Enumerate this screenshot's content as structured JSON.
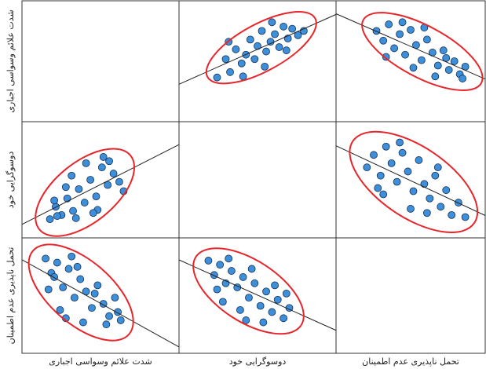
{
  "chart_data": {
    "type": "scatter-matrix",
    "variables": [
      "شدت علائم وسواسی اجباری",
      "دوسوگرایی خود",
      "تحمل ناپذیری عدم اطمینان"
    ],
    "xlim": [
      0,
      10
    ],
    "ylim": [
      0,
      10
    ],
    "point_color": "#3d8fd9",
    "ellipse_color": "#e8252a",
    "cells": [
      [
        null,
        {
          "x": [
            2.2,
            2.8,
            3.1,
            3.5,
            3.9,
            4.2,
            4.5,
            4.8,
            5.0,
            5.3,
            5.6,
            5.9,
            6.2,
            6.5,
            6.8,
            7.1,
            7.4,
            7.8,
            3.0,
            4.0,
            5.5,
            6.0,
            7.0,
            8.2
          ],
          "y": [
            3.5,
            5.2,
            4.0,
            6.1,
            4.8,
            5.6,
            7.0,
            5.2,
            6.4,
            7.8,
            5.9,
            6.8,
            7.5,
            6.3,
            8.2,
            7.1,
            8.0,
            7.4,
            6.8,
            3.6,
            4.5,
            8.6,
            6.0,
            7.8
          ]
        },
        {
          "x": [
            2.5,
            3.0,
            3.4,
            3.8,
            4.2,
            4.6,
            5.0,
            5.4,
            5.8,
            6.2,
            6.6,
            7.0,
            7.4,
            7.8,
            8.2,
            8.6,
            3.2,
            4.4,
            5.2,
            6.0,
            6.8,
            7.6,
            8.8,
            9.0
          ],
          "y": [
            7.8,
            6.9,
            8.4,
            6.2,
            7.5,
            5.6,
            7.9,
            6.5,
            5.1,
            7.0,
            5.8,
            4.6,
            6.0,
            4.2,
            5.0,
            3.8,
            5.4,
            8.6,
            4.4,
            8.1,
            3.6,
            5.3,
            3.4,
            4.5
          ]
        }
      ],
      [
        {
          "x": [
            1.5,
            1.9,
            2.3,
            2.7,
            3.1,
            3.5,
            3.9,
            4.3,
            4.7,
            5.1,
            5.5,
            5.9,
            6.3,
            2.0,
            2.6,
            3.3,
            4.0,
            4.8,
            5.6,
            6.6,
            1.8,
            3.0,
            4.5,
            5.2
          ],
          "y": [
            1.2,
            2.4,
            1.6,
            3.2,
            2.0,
            4.1,
            2.8,
            5.0,
            3.4,
            6.2,
            4.5,
            5.6,
            4.8,
            1.5,
            4.3,
            1.3,
            6.6,
            2.1,
            6.8,
            3.9,
            3.0,
            5.4,
            1.8,
            7.2
          ]
        },
        null,
        {
          "x": [
            1.8,
            2.3,
            2.8,
            3.2,
            3.6,
            4.0,
            4.4,
            4.8,
            5.2,
            5.6,
            6.0,
            6.4,
            6.8,
            7.2,
            7.6,
            8.0,
            8.5,
            9.0,
            3.0,
            4.2,
            5.0,
            6.2,
            7.0,
            2.6
          ],
          "y": [
            6.2,
            7.4,
            5.4,
            8.2,
            6.6,
            4.8,
            7.6,
            5.8,
            3.9,
            6.9,
            4.6,
            3.2,
            5.4,
            2.4,
            4.0,
            1.6,
            2.8,
            1.4,
            3.6,
            8.6,
            2.2,
            1.8,
            6.2,
            4.2
          ]
        }
      ],
      [
        {
          "x": [
            1.2,
            1.6,
            2.0,
            2.4,
            2.8,
            3.2,
            3.6,
            4.0,
            4.4,
            4.8,
            5.2,
            5.6,
            6.0,
            6.4,
            1.4,
            2.2,
            3.0,
            3.8,
            4.6,
            5.4,
            6.2,
            1.8,
            2.6,
            3.4
          ],
          "y": [
            8.6,
            7.2,
            8.2,
            5.8,
            7.6,
            4.8,
            6.6,
            5.4,
            3.8,
            6.0,
            4.2,
            3.0,
            4.8,
            2.6,
            5.6,
            3.6,
            8.8,
            2.4,
            5.2,
            2.2,
            3.4,
            6.8,
            2.8,
            7.8
          ]
        },
        {
          "x": [
            1.6,
            2.0,
            2.4,
            2.8,
            3.2,
            3.6,
            4.0,
            4.4,
            4.8,
            5.2,
            5.6,
            6.0,
            6.4,
            6.8,
            7.2,
            2.2,
            3.0,
            3.8,
            4.6,
            5.4,
            6.2,
            7.0,
            2.6,
            4.2
          ],
          "y": [
            8.4,
            7.0,
            8.0,
            6.2,
            7.4,
            5.8,
            6.8,
            4.8,
            6.2,
            4.0,
            5.4,
            3.4,
            4.6,
            2.8,
            3.8,
            5.6,
            8.6,
            3.6,
            7.6,
            2.4,
            6.0,
            5.2,
            4.4,
            2.6
          ]
        },
        null
      ]
    ]
  }
}
